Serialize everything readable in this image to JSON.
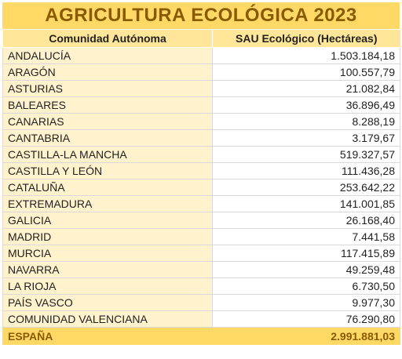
{
  "title": "AGRICULTURA ECOLÓGICA 2023",
  "headers": {
    "region": "Comunidad Autónoma",
    "value": "SAU Ecológico (Hectáreas)"
  },
  "rows": [
    {
      "region": "ANDALUCÍA",
      "value": "1.503.184,18"
    },
    {
      "region": "ARAGÓN",
      "value": "100.557,79"
    },
    {
      "region": "ASTURIAS",
      "value": "21.082,84"
    },
    {
      "region": "BALEARES",
      "value": "36.896,49"
    },
    {
      "region": "CANARIAS",
      "value": "8.288,19"
    },
    {
      "region": "CANTABRIA",
      "value": "3.179,67"
    },
    {
      "region": "CASTILLA-LA MANCHA",
      "value": "519.327,57"
    },
    {
      "region": "CASTILLA Y LEÓN",
      "value": "111.436,28"
    },
    {
      "region": "CATALUÑA",
      "value": "253.642,22"
    },
    {
      "region": "EXTREMADURA",
      "value": "141.001,85"
    },
    {
      "region": "GALICIA",
      "value": "26.168,40"
    },
    {
      "region": "MADRID",
      "value": "7.441,58"
    },
    {
      "region": "MURCIA",
      "value": "117.415,89"
    },
    {
      "region": "NAVARRA",
      "value": "49.259,48"
    },
    {
      "region": "LA RIOJA",
      "value": "6.730,50"
    },
    {
      "region": "PAÍS VASCO",
      "value": "9.977,30"
    },
    {
      "region": "COMUNIDAD VALENCIANA",
      "value": "76.290,80"
    }
  ],
  "total": {
    "region": "ESPAÑA",
    "value": "2.991.881,03"
  },
  "colors": {
    "title_fill": "#ffd966",
    "title_text": "#8a5a00",
    "header_fill": "#ffe699",
    "name_fill": "#fff2cc",
    "grid": "#d9d9d9"
  }
}
